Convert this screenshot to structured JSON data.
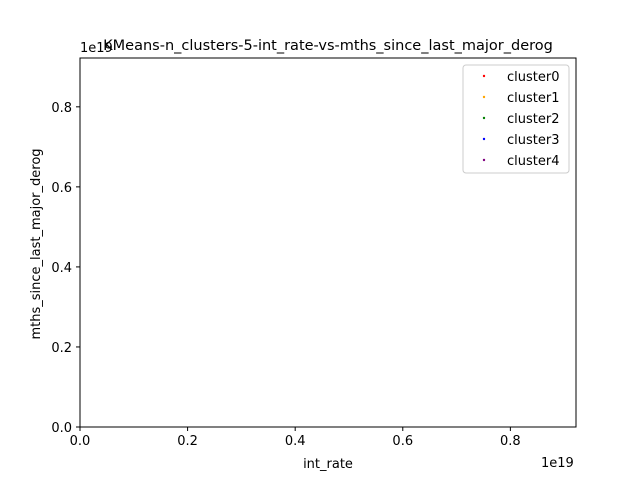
{
  "chart_data": {
    "type": "scatter",
    "title": "KMeans-n_clusters-5-int_rate-vs-mths_since_last_major_derog",
    "xlabel": "int_rate",
    "ylabel": "mths_since_last_major_derog",
    "x_offset_text": "1e19",
    "y_offset_text": "1e19",
    "xlim": [
      0,
      0.922
    ],
    "ylim": [
      0,
      0.922
    ],
    "x_ticks": [
      {
        "value": 0.0,
        "label": "0.0"
      },
      {
        "value": 0.2,
        "label": "0.2"
      },
      {
        "value": 0.4,
        "label": "0.4"
      },
      {
        "value": 0.6,
        "label": "0.6"
      },
      {
        "value": 0.8,
        "label": "0.8"
      }
    ],
    "y_ticks": [
      {
        "value": 0.0,
        "label": "0.0"
      },
      {
        "value": 0.2,
        "label": "0.2"
      },
      {
        "value": 0.4,
        "label": "0.4"
      },
      {
        "value": 0.6,
        "label": "0.6"
      },
      {
        "value": 0.8,
        "label": "0.8"
      }
    ],
    "grid": false,
    "legend_position": "top-right",
    "series": [
      {
        "name": "cluster0",
        "color": "#ff0000",
        "points": []
      },
      {
        "name": "cluster1",
        "color": "#ffa500",
        "points": []
      },
      {
        "name": "cluster2",
        "color": "#008000",
        "points": []
      },
      {
        "name": "cluster3",
        "color": "#0000ff",
        "points": []
      },
      {
        "name": "cluster4",
        "color": "#800080",
        "points": []
      }
    ]
  }
}
